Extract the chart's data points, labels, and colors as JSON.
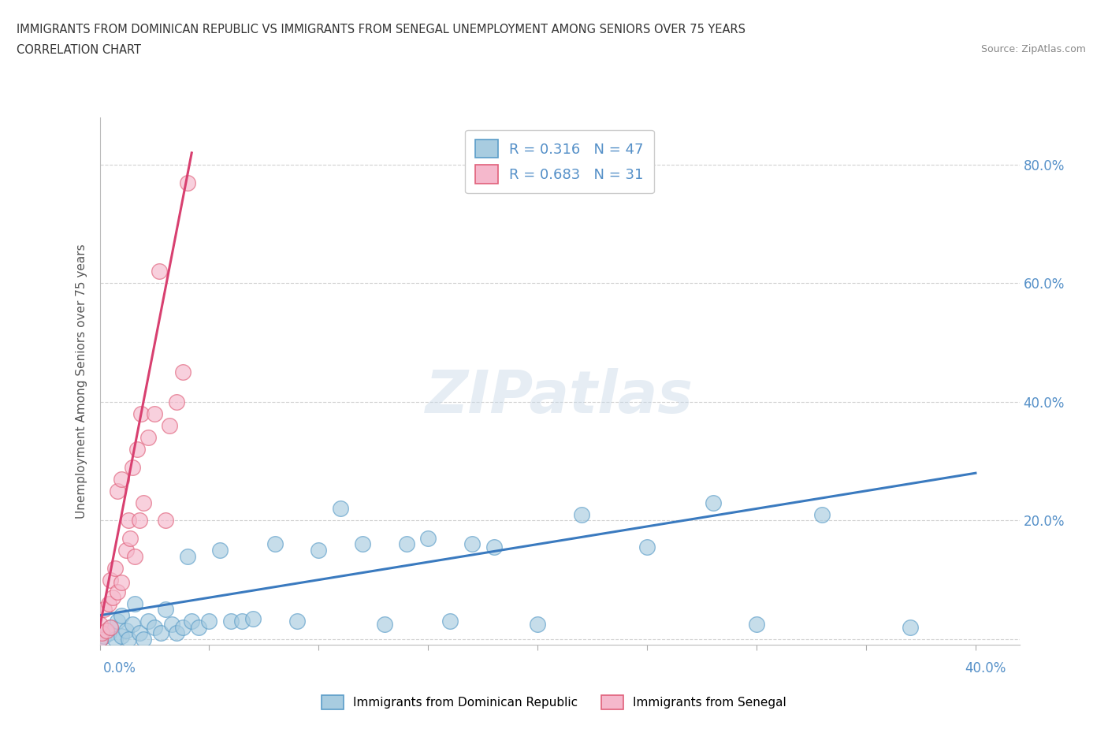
{
  "title_line1": "IMMIGRANTS FROM DOMINICAN REPUBLIC VS IMMIGRANTS FROM SENEGAL UNEMPLOYMENT AMONG SENIORS OVER 75 YEARS",
  "title_line2": "CORRELATION CHART",
  "source": "Source: ZipAtlas.com",
  "ylabel": "Unemployment Among Seniors over 75 years",
  "right_ytick_labels": [
    "80.0%",
    "60.0%",
    "40.0%",
    "20.0%",
    ""
  ],
  "right_ytick_vals": [
    0.8,
    0.6,
    0.4,
    0.2,
    0.0
  ],
  "xlim": [
    0.0,
    0.42
  ],
  "ylim": [
    -0.01,
    0.88
  ],
  "legend_r1": "R = 0.316",
  "legend_n1": "N = 47",
  "legend_r2": "R = 0.683",
  "legend_n2": "N = 31",
  "color_blue_fill": "#a8cce0",
  "color_blue_edge": "#5b9dc8",
  "color_pink_fill": "#f5b8cc",
  "color_pink_edge": "#e0607a",
  "color_blue_line": "#3a7abf",
  "color_pink_line": "#d84070",
  "blue_scatter_x": [
    0.0,
    0.002,
    0.004,
    0.005,
    0.007,
    0.008,
    0.01,
    0.01,
    0.012,
    0.013,
    0.015,
    0.016,
    0.018,
    0.02,
    0.022,
    0.025,
    0.028,
    0.03,
    0.033,
    0.035,
    0.038,
    0.04,
    0.042,
    0.045,
    0.05,
    0.055,
    0.06,
    0.065,
    0.07,
    0.08,
    0.09,
    0.1,
    0.11,
    0.12,
    0.13,
    0.14,
    0.15,
    0.16,
    0.17,
    0.18,
    0.2,
    0.22,
    0.25,
    0.28,
    0.3,
    0.33,
    0.37
  ],
  "blue_scatter_y": [
    0.0,
    0.005,
    0.01,
    0.02,
    0.0,
    0.03,
    0.005,
    0.04,
    0.015,
    0.0,
    0.025,
    0.06,
    0.01,
    0.0,
    0.03,
    0.02,
    0.01,
    0.05,
    0.025,
    0.01,
    0.02,
    0.14,
    0.03,
    0.02,
    0.03,
    0.15,
    0.03,
    0.03,
    0.035,
    0.16,
    0.03,
    0.15,
    0.22,
    0.16,
    0.025,
    0.16,
    0.17,
    0.03,
    0.16,
    0.155,
    0.025,
    0.21,
    0.155,
    0.23,
    0.025,
    0.21,
    0.02
  ],
  "pink_scatter_x": [
    0.0,
    0.0,
    0.001,
    0.002,
    0.003,
    0.004,
    0.005,
    0.005,
    0.006,
    0.007,
    0.008,
    0.008,
    0.01,
    0.01,
    0.012,
    0.013,
    0.014,
    0.015,
    0.016,
    0.017,
    0.018,
    0.019,
    0.02,
    0.022,
    0.025,
    0.027,
    0.03,
    0.032,
    0.035,
    0.038,
    0.04
  ],
  "pink_scatter_y": [
    0.0,
    0.025,
    0.01,
    0.05,
    0.015,
    0.06,
    0.02,
    0.1,
    0.07,
    0.12,
    0.08,
    0.25,
    0.095,
    0.27,
    0.15,
    0.2,
    0.17,
    0.29,
    0.14,
    0.32,
    0.2,
    0.38,
    0.23,
    0.34,
    0.38,
    0.62,
    0.2,
    0.36,
    0.4,
    0.45,
    0.77
  ],
  "blue_trend_x": [
    0.0,
    0.4
  ],
  "blue_trend_y": [
    0.04,
    0.28
  ],
  "pink_trend_x": [
    0.0,
    0.042
  ],
  "pink_trend_y": [
    0.02,
    0.82
  ],
  "watermark": "ZIPatlas",
  "grid_color": "#cccccc",
  "bg_color": "#ffffff",
  "tick_label_color": "#5590c8",
  "title_color": "#333333",
  "source_color": "#888888"
}
